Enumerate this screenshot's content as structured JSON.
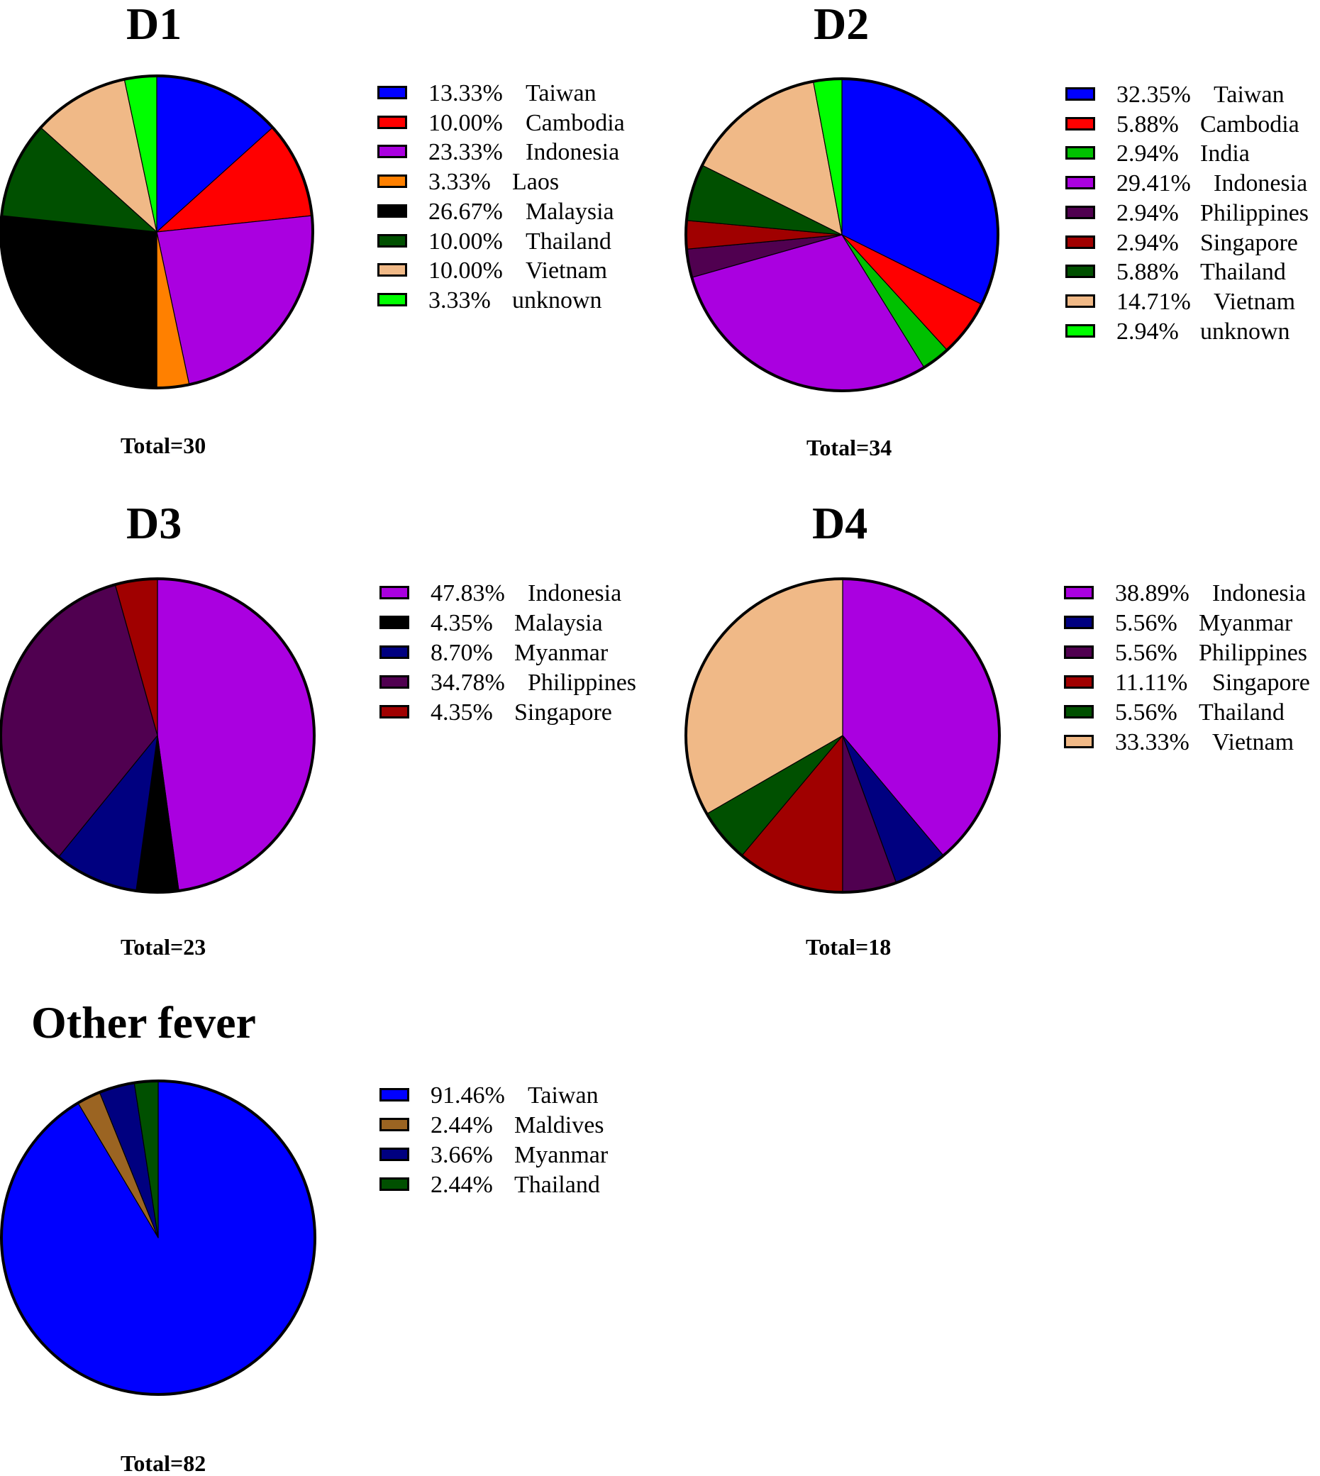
{
  "chart_data": [
    {
      "type": "pie",
      "title": "D1",
      "total_label": "Total=30",
      "slices": [
        {
          "label": "Taiwan",
          "pct_label": "13.33%",
          "value": 13.33,
          "color": "#0000ff"
        },
        {
          "label": "Cambodia",
          "pct_label": "10.00%",
          "value": 10.0,
          "color": "#ff0000"
        },
        {
          "label": "Indonesia",
          "pct_label": "23.33%",
          "value": 23.33,
          "color": "#aa00e0"
        },
        {
          "label": "Laos",
          "pct_label": "3.33%",
          "value": 3.33,
          "color": "#ff8000"
        },
        {
          "label": "Malaysia",
          "pct_label": "26.67%",
          "value": 26.67,
          "color": "#000000"
        },
        {
          "label": "Thailand",
          "pct_label": "10.00%",
          "value": 10.0,
          "color": "#005000"
        },
        {
          "label": "Vietnam",
          "pct_label": "10.00%",
          "value": 10.0,
          "color": "#f0b987"
        },
        {
          "label": "unknown",
          "pct_label": "3.33%",
          "value": 3.33,
          "color": "#00ff00"
        }
      ]
    },
    {
      "type": "pie",
      "title": "D2",
      "total_label": "Total=34",
      "slices": [
        {
          "label": "Taiwan",
          "pct_label": "32.35%",
          "value": 32.35,
          "color": "#0000ff"
        },
        {
          "label": "Cambodia",
          "pct_label": "5.88%",
          "value": 5.88,
          "color": "#ff0000"
        },
        {
          "label": "India",
          "pct_label": "2.94%",
          "value": 2.94,
          "color": "#00c000"
        },
        {
          "label": "Indonesia",
          "pct_label": "29.41%",
          "value": 29.41,
          "color": "#aa00e0"
        },
        {
          "label": "Philippines",
          "pct_label": "2.94%",
          "value": 2.94,
          "color": "#500050"
        },
        {
          "label": "Singapore",
          "pct_label": "2.94%",
          "value": 2.94,
          "color": "#a00000"
        },
        {
          "label": "Thailand",
          "pct_label": "5.88%",
          "value": 5.88,
          "color": "#005000"
        },
        {
          "label": "Vietnam",
          "pct_label": "14.71%",
          "value": 14.71,
          "color": "#f0b987"
        },
        {
          "label": "unknown",
          "pct_label": "2.94%",
          "value": 2.94,
          "color": "#00ff00"
        }
      ]
    },
    {
      "type": "pie",
      "title": "D3",
      "total_label": "Total=23",
      "slices": [
        {
          "label": "Indonesia",
          "pct_label": "47.83%",
          "value": 47.83,
          "color": "#aa00e0"
        },
        {
          "label": "Malaysia",
          "pct_label": "4.35%",
          "value": 4.35,
          "color": "#000000"
        },
        {
          "label": "Myanmar",
          "pct_label": "8.70%",
          "value": 8.7,
          "color": "#000080"
        },
        {
          "label": "Philippines",
          "pct_label": "34.78%",
          "value": 34.78,
          "color": "#500050"
        },
        {
          "label": "Singapore",
          "pct_label": "4.35%",
          "value": 4.35,
          "color": "#a00000"
        }
      ]
    },
    {
      "type": "pie",
      "title": "D4",
      "total_label": "Total=18",
      "slices": [
        {
          "label": "Indonesia",
          "pct_label": "38.89%",
          "value": 38.89,
          "color": "#aa00e0"
        },
        {
          "label": "Myanmar",
          "pct_label": "5.56%",
          "value": 5.56,
          "color": "#000080"
        },
        {
          "label": "Philippines",
          "pct_label": "5.56%",
          "value": 5.56,
          "color": "#500050"
        },
        {
          "label": "Singapore",
          "pct_label": "11.11%",
          "value": 11.11,
          "color": "#a00000"
        },
        {
          "label": "Thailand",
          "pct_label": "5.56%",
          "value": 5.56,
          "color": "#005000"
        },
        {
          "label": "Vietnam",
          "pct_label": "33.33%",
          "value": 33.33,
          "color": "#f0b987"
        }
      ]
    },
    {
      "type": "pie",
      "title": "Other fever",
      "total_label": "Total=82",
      "slices": [
        {
          "label": "Taiwan",
          "pct_label": "91.46%",
          "value": 91.46,
          "color": "#0000ff"
        },
        {
          "label": "Maldives",
          "pct_label": "2.44%",
          "value": 2.44,
          "color": "#9b6422"
        },
        {
          "label": "Myanmar",
          "pct_label": "3.66%",
          "value": 3.66,
          "color": "#000080"
        },
        {
          "label": "Thailand",
          "pct_label": "2.44%",
          "value": 2.44,
          "color": "#005000"
        }
      ]
    }
  ]
}
